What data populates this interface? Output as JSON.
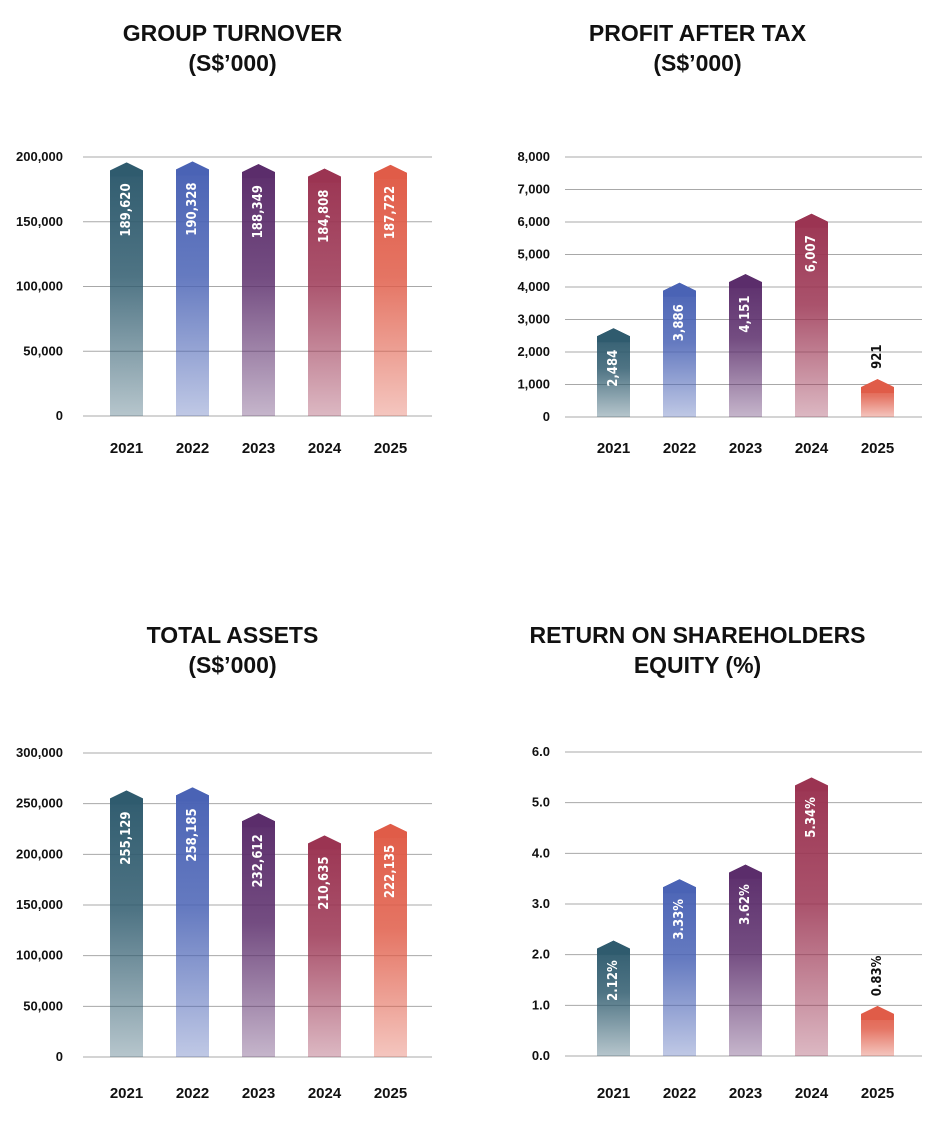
{
  "colors": {
    "c2021": "#2f5b6e",
    "c2022": "#4a63b5",
    "c2023": "#5b2d6b",
    "c2024": "#9b3452",
    "c2025": "#e05c48",
    "grid": "#a8a8a8",
    "text": "#111111"
  },
  "chart_data": [
    {
      "type": "bar",
      "title": [
        "GROUP TURNOVER",
        "(S$’000)"
      ],
      "categories": [
        "2021",
        "2022",
        "2023",
        "2024",
        "2025"
      ],
      "values": [
        189620,
        190328,
        188349,
        184808,
        187722
      ],
      "value_labels": [
        "189,620",
        "190,328",
        "188,349",
        "184,808",
        "187,722"
      ],
      "ylim": [
        0,
        200000
      ],
      "yticks": [
        0,
        50000,
        100000,
        150000,
        200000
      ],
      "ytick_labels": [
        "0",
        "50,000",
        "100,000",
        "150,000",
        "200,000"
      ],
      "grid": true
    },
    {
      "type": "bar",
      "title": [
        "PROFIT AFTER TAX",
        "(S$’000)"
      ],
      "categories": [
        "2021",
        "2022",
        "2023",
        "2024",
        "2025"
      ],
      "values": [
        2484,
        3886,
        4151,
        6007,
        921
      ],
      "value_labels": [
        "2,484",
        "3,886",
        "4,151",
        "6,007",
        "921"
      ],
      "ylim": [
        0,
        8000
      ],
      "yticks": [
        0,
        1000,
        2000,
        3000,
        4000,
        5000,
        6000,
        7000,
        8000
      ],
      "ytick_labels": [
        "0",
        "1,000",
        "2,000",
        "3,000",
        "4,000",
        "5,000",
        "6,000",
        "7,000",
        "8,000"
      ],
      "grid": true
    },
    {
      "type": "bar",
      "title": [
        "TOTAL ASSETS",
        "(S$’000)"
      ],
      "categories": [
        "2021",
        "2022",
        "2023",
        "2024",
        "2025"
      ],
      "values": [
        255129,
        258185,
        232612,
        210635,
        222135
      ],
      "value_labels": [
        "255,129",
        "258,185",
        "232,612",
        "210,635",
        "222,135"
      ],
      "ylim": [
        0,
        300000
      ],
      "yticks": [
        0,
        50000,
        100000,
        150000,
        200000,
        250000,
        300000
      ],
      "ytick_labels": [
        "0",
        "50,000",
        "100,000",
        "150,000",
        "200,000",
        "250,000",
        "300,000"
      ],
      "grid": true
    },
    {
      "type": "bar",
      "title": [
        "RETURN ON SHAREHOLDERS",
        "EQUITY (%)"
      ],
      "categories": [
        "2021",
        "2022",
        "2023",
        "2024",
        "2025"
      ],
      "values": [
        2.12,
        3.33,
        3.62,
        5.34,
        0.83
      ],
      "value_labels": [
        "2.12%",
        "3.33%",
        "3.62%",
        "5.34%",
        "0.83%"
      ],
      "ylim": [
        0,
        6
      ],
      "yticks": [
        0,
        1,
        2,
        3,
        4,
        5,
        6
      ],
      "ytick_labels": [
        "0.0",
        "1.0",
        "2.0",
        "3.0",
        "4.0",
        "5.0",
        "6.0"
      ],
      "grid": true
    }
  ]
}
